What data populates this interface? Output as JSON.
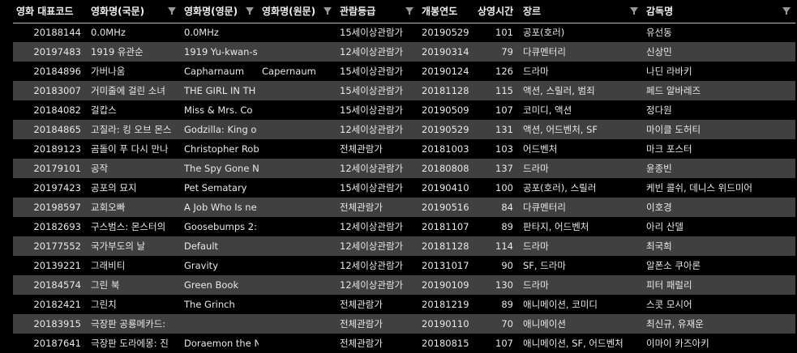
{
  "columns": [
    {
      "label": "영화 대표코드",
      "filter": false
    },
    {
      "label": "영화명(국문)",
      "filter": true
    },
    {
      "label": "영화명(영문)",
      "filter": true
    },
    {
      "label": "영화명(원문)",
      "filter": true
    },
    {
      "label": "관람등급",
      "filter": true
    },
    {
      "label": "개봉연도",
      "filter": false
    },
    {
      "label": "상영시간",
      "filter": false
    },
    {
      "label": "장르",
      "filter": true
    },
    {
      "label": "감독명",
      "filter": true
    }
  ],
  "rows": [
    [
      "20188144",
      "0.0MHz",
      "0.0MHz",
      "",
      "15세이상관람가",
      "20190529",
      "101",
      "공포(호러)",
      "유선동"
    ],
    [
      "20197483",
      "1919 유관순",
      "1919 Yu-kwan-s",
      "",
      "12세이상관람가",
      "20190314",
      "79",
      "다큐멘터리",
      "신상민"
    ],
    [
      "20184896",
      "가버나움",
      "Capharnaum",
      "Capernaum",
      "15세이상관람가",
      "20190124",
      "126",
      "드라마",
      "나딘 라바키"
    ],
    [
      "20183007",
      "거미줄에 걸린 소녀",
      "THE GIRL IN TH",
      "",
      "15세이상관람가",
      "20181128",
      "115",
      "액션, 스릴러, 범죄",
      "페드 알바레즈"
    ],
    [
      "20184082",
      "걸캅스",
      "Miss & Mrs. Co",
      "",
      "15세이상관람가",
      "20190509",
      "107",
      "코미디, 액션",
      "정다원"
    ],
    [
      "20184865",
      "고질라: 킹 오브 몬스",
      "Godzilla: King o",
      "",
      "12세이상관람가",
      "20190529",
      "131",
      "액션, 어드벤처, SF",
      "마이클 도허티"
    ],
    [
      "20189123",
      "곰돌이 푸 다시 만나",
      "Christopher Rob",
      "",
      "전체관람가",
      "20181003",
      "103",
      "어드벤처",
      "마크 포스터"
    ],
    [
      "20179101",
      "공작",
      "The Spy Gone N",
      "",
      "12세이상관람가",
      "20180808",
      "137",
      "드라마",
      "윤종빈"
    ],
    [
      "20197423",
      "공포의 묘지",
      "Pet Sematary",
      "",
      "15세이상관람가",
      "20190410",
      "100",
      "공포(호러), 스릴러",
      "케빈 콜쉬, 데니스 위드미어"
    ],
    [
      "20198597",
      "교회오빠",
      "A Job Who Is ne",
      "",
      "전체관람가",
      "20190516",
      "84",
      "다큐멘터리",
      "이호경"
    ],
    [
      "20182693",
      "구스범스: 몬스터의",
      "Goosebumps 2:",
      "",
      "12세이상관람가",
      "20181107",
      "89",
      "판타지, 어드벤처",
      "아리 산델"
    ],
    [
      "20177552",
      "국가부도의 날",
      "Default",
      "",
      "12세이상관람가",
      "20181128",
      "114",
      "드라마",
      "최국희"
    ],
    [
      "20139221",
      "그래비티",
      "Gravity",
      "",
      "12세이상관람가",
      "20131017",
      "90",
      "SF, 드라마",
      "알폰소 쿠아론"
    ],
    [
      "20184574",
      "그린 북",
      "Green Book",
      "",
      "12세이상관람가",
      "20190109",
      "130",
      "드라마",
      "피터 패럴리"
    ],
    [
      "20182421",
      "그린치",
      "The Grinch",
      "",
      "전체관람가",
      "20181219",
      "89",
      "애니메이션, 코미디",
      "스콧 모시어"
    ],
    [
      "20183915",
      "극장판 공룡메카드:",
      "",
      "",
      "전체관람가",
      "20190110",
      "70",
      "애니메이션",
      "최신규, 유재운"
    ],
    [
      "20187641",
      "극장판 도라에몽: 진",
      "Doraemon the N",
      "",
      "전체관람가",
      "20180815",
      "107",
      "애니메이션, SF, 어드벤처",
      "이마이 카즈아키"
    ]
  ]
}
